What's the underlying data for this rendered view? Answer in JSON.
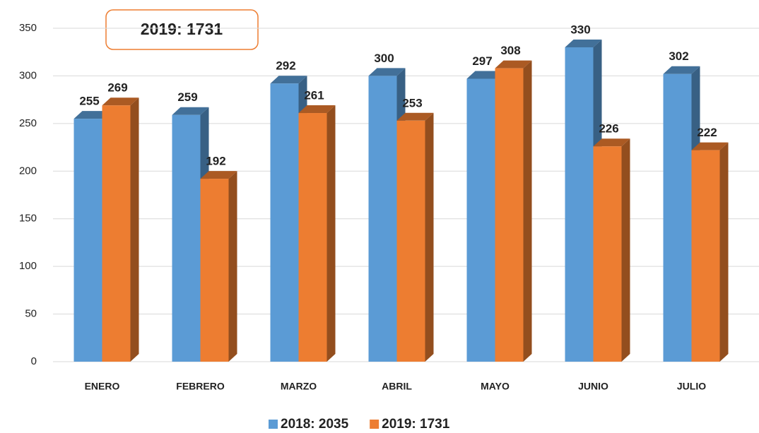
{
  "chart_data": {
    "type": "bar3d",
    "annotation": "2019: 1731",
    "categories": [
      "ENERO",
      "FEBRERO",
      "MARZO",
      "ABRIL",
      "MAYO",
      "JUNIO",
      "JULIO"
    ],
    "series": [
      {
        "name": "2018: 2035",
        "color": "#5b9bd5",
        "values": [
          255,
          259,
          292,
          300,
          297,
          330,
          302
        ]
      },
      {
        "name": "2019: 1731",
        "color": "#ed7d31",
        "values": [
          269,
          192,
          261,
          253,
          308,
          226,
          222
        ]
      }
    ],
    "ylim": [
      0,
      350
    ],
    "yticks": [
      0,
      50,
      100,
      150,
      200,
      250,
      300,
      350
    ],
    "grid": true,
    "legend": "bottom"
  }
}
